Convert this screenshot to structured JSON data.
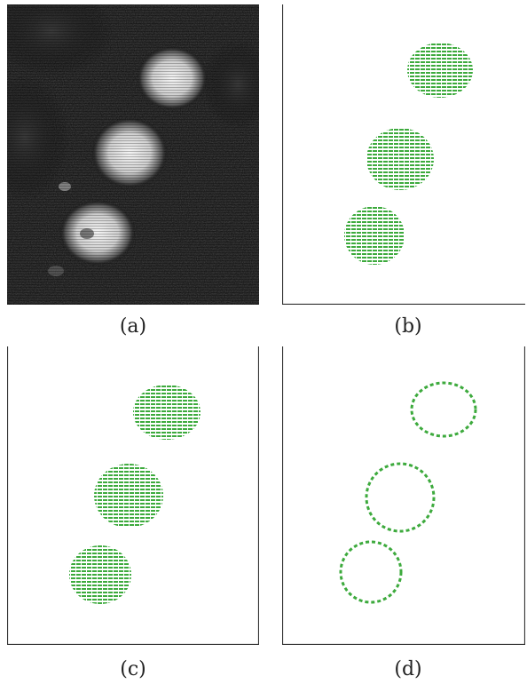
{
  "figure": {
    "panels": [
      {
        "id": "a",
        "caption": "(a)",
        "kind": "grayscale-photo",
        "objects": 3
      },
      {
        "id": "b",
        "caption": "(b)",
        "kind": "filled-segmentation",
        "objects": 3
      },
      {
        "id": "c",
        "caption": "(c)",
        "kind": "filled-segmentation",
        "objects": 3
      },
      {
        "id": "d",
        "caption": "(d)",
        "kind": "boundary-outline",
        "objects": 3
      }
    ]
  },
  "colors": {
    "segmentation": "#3daa3d",
    "photo_background": "#0c0c0c",
    "panel_border": "#333333"
  }
}
